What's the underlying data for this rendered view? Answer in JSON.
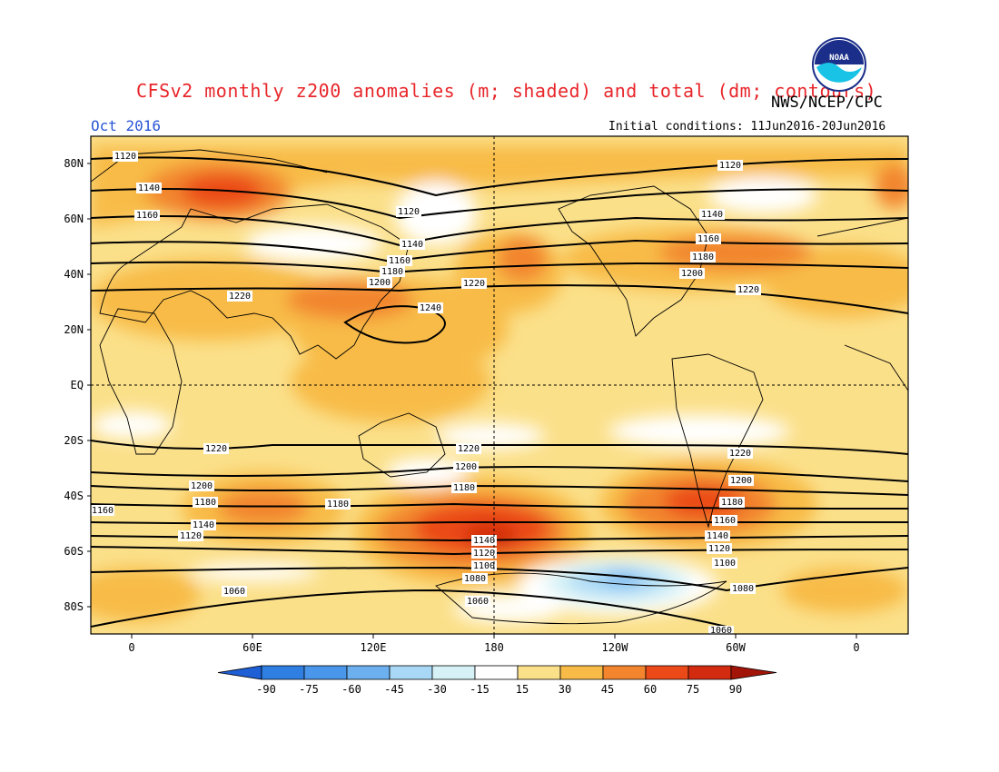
{
  "header": {
    "title": "CFSv2 monthly z200 anomalies (m; shaded) and total (dm; contours)",
    "agency": "NWS/NCEP/CPC",
    "logo": "NOAA",
    "forecast_month": "Oct 2016",
    "initial_conditions": "Initial conditions: 11Jun2016-20Jun2016"
  },
  "map": {
    "lat_labels": [
      "80N",
      "60N",
      "40N",
      "20N",
      "EQ",
      "20S",
      "40S",
      "60S",
      "80S"
    ],
    "lon_labels": [
      "0",
      "60E",
      "120E",
      "180",
      "120W",
      "60W",
      "0"
    ],
    "contour_labels": [
      "1120",
      "1140",
      "1160",
      "1180",
      "1200",
      "1220",
      "1240",
      "1060",
      "1080",
      "1100"
    ]
  },
  "colorbar": {
    "ticks": [
      "-90",
      "-75",
      "-60",
      "-45",
      "-30",
      "-15",
      "15",
      "30",
      "45",
      "60",
      "75",
      "90"
    ],
    "colors": [
      "#1e5fd6",
      "#2f7fe3",
      "#4a96ea",
      "#6cb0f0",
      "#a8d8f5",
      "#d6f2f7",
      "#ffffff",
      "#fbe08a",
      "#f8bb47",
      "#f2852e",
      "#eb4a18",
      "#d22b10",
      "#a31408"
    ]
  }
}
